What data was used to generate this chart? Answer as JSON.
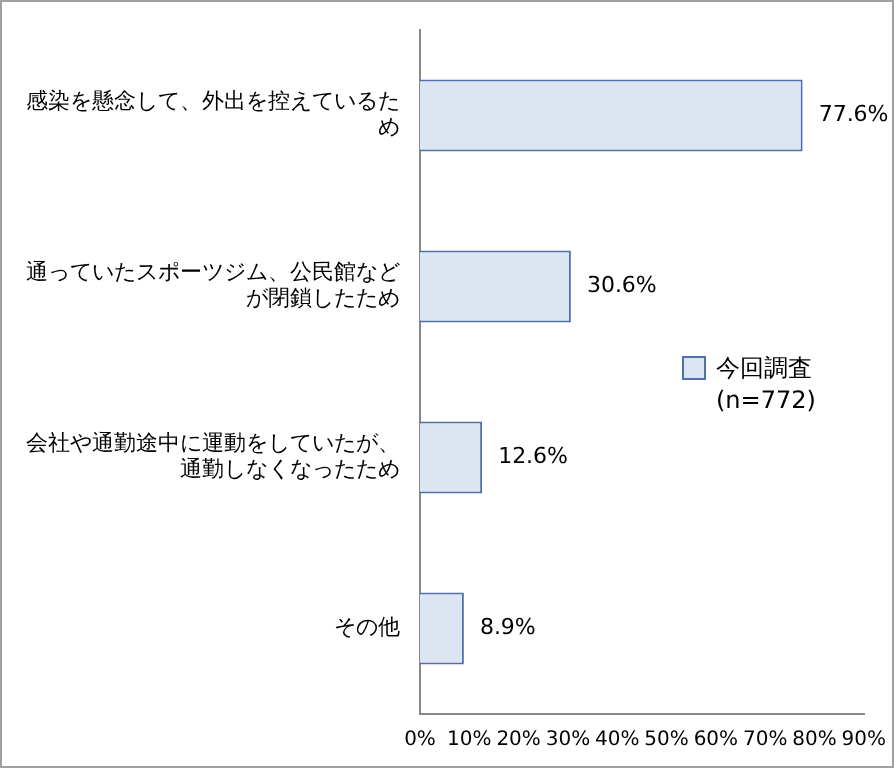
{
  "chart_data": {
    "type": "bar",
    "orientation": "horizontal",
    "categories": [
      "感染を懸念して、外出を控えているため",
      "通っていたスポーツジム、公民館などが閉鎖したため",
      "会社や通勤途中に運動をしていたが、通勤しなくなったため",
      "その他"
    ],
    "series": [
      {
        "name": "今回調査(n=772)",
        "color": "#dce6f2",
        "values": [
          77.6,
          30.6,
          12.6,
          8.9
        ],
        "value_labels": [
          "77.6%",
          "30.6%",
          "12.6%",
          "8.9%"
        ]
      }
    ],
    "xlim": [
      0,
      90
    ],
    "xticks": [
      {
        "value": 0,
        "label": "0%"
      },
      {
        "value": 10,
        "label": "10%"
      },
      {
        "value": 20,
        "label": "20%"
      },
      {
        "value": 30,
        "label": "30%"
      },
      {
        "value": 40,
        "label": "40%"
      },
      {
        "value": 50,
        "label": "50%"
      },
      {
        "value": 60,
        "label": "60%"
      },
      {
        "value": 70,
        "label": "70%"
      },
      {
        "value": 80,
        "label": "80%"
      },
      {
        "value": 90,
        "label": "90%"
      }
    ],
    "grid": false,
    "legend": "right"
  }
}
